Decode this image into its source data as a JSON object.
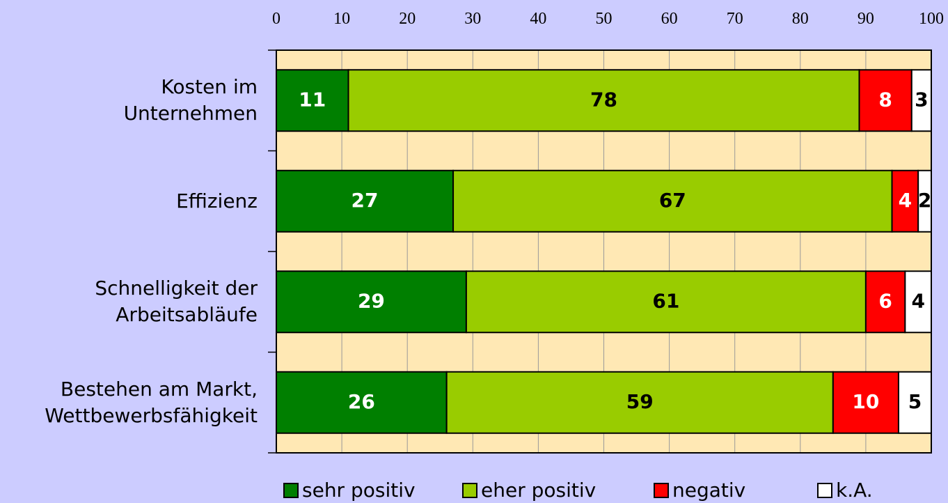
{
  "chart_data": {
    "type": "stacked_bar_horizontal",
    "categories": [
      "Kosten im\nUnternehmen",
      "Effizienz",
      "Schnelligkeit der\nArbeitsabläufe",
      "Bestehen am Markt,\nWettbewerbsfähigkeit"
    ],
    "series": [
      {
        "name": "sehr positiv",
        "color": "#007f00",
        "label_color": "#ffffff",
        "values": [
          11,
          27,
          29,
          26
        ]
      },
      {
        "name": "eher positiv",
        "color": "#99cc00",
        "label_color": "#000000",
        "values": [
          78,
          67,
          61,
          59
        ]
      },
      {
        "name": "negativ",
        "color": "#ff0000",
        "label_color": "#ffffff",
        "values": [
          8,
          4,
          6,
          10
        ]
      },
      {
        "name": "k.A.",
        "color": "#ffffff",
        "label_color": "#000000",
        "values": [
          3,
          2,
          4,
          5
        ]
      }
    ],
    "xlim": [
      0,
      100
    ],
    "xticks": [
      0,
      10,
      20,
      30,
      40,
      50,
      60,
      70,
      80,
      90,
      100
    ],
    "grid": true
  }
}
